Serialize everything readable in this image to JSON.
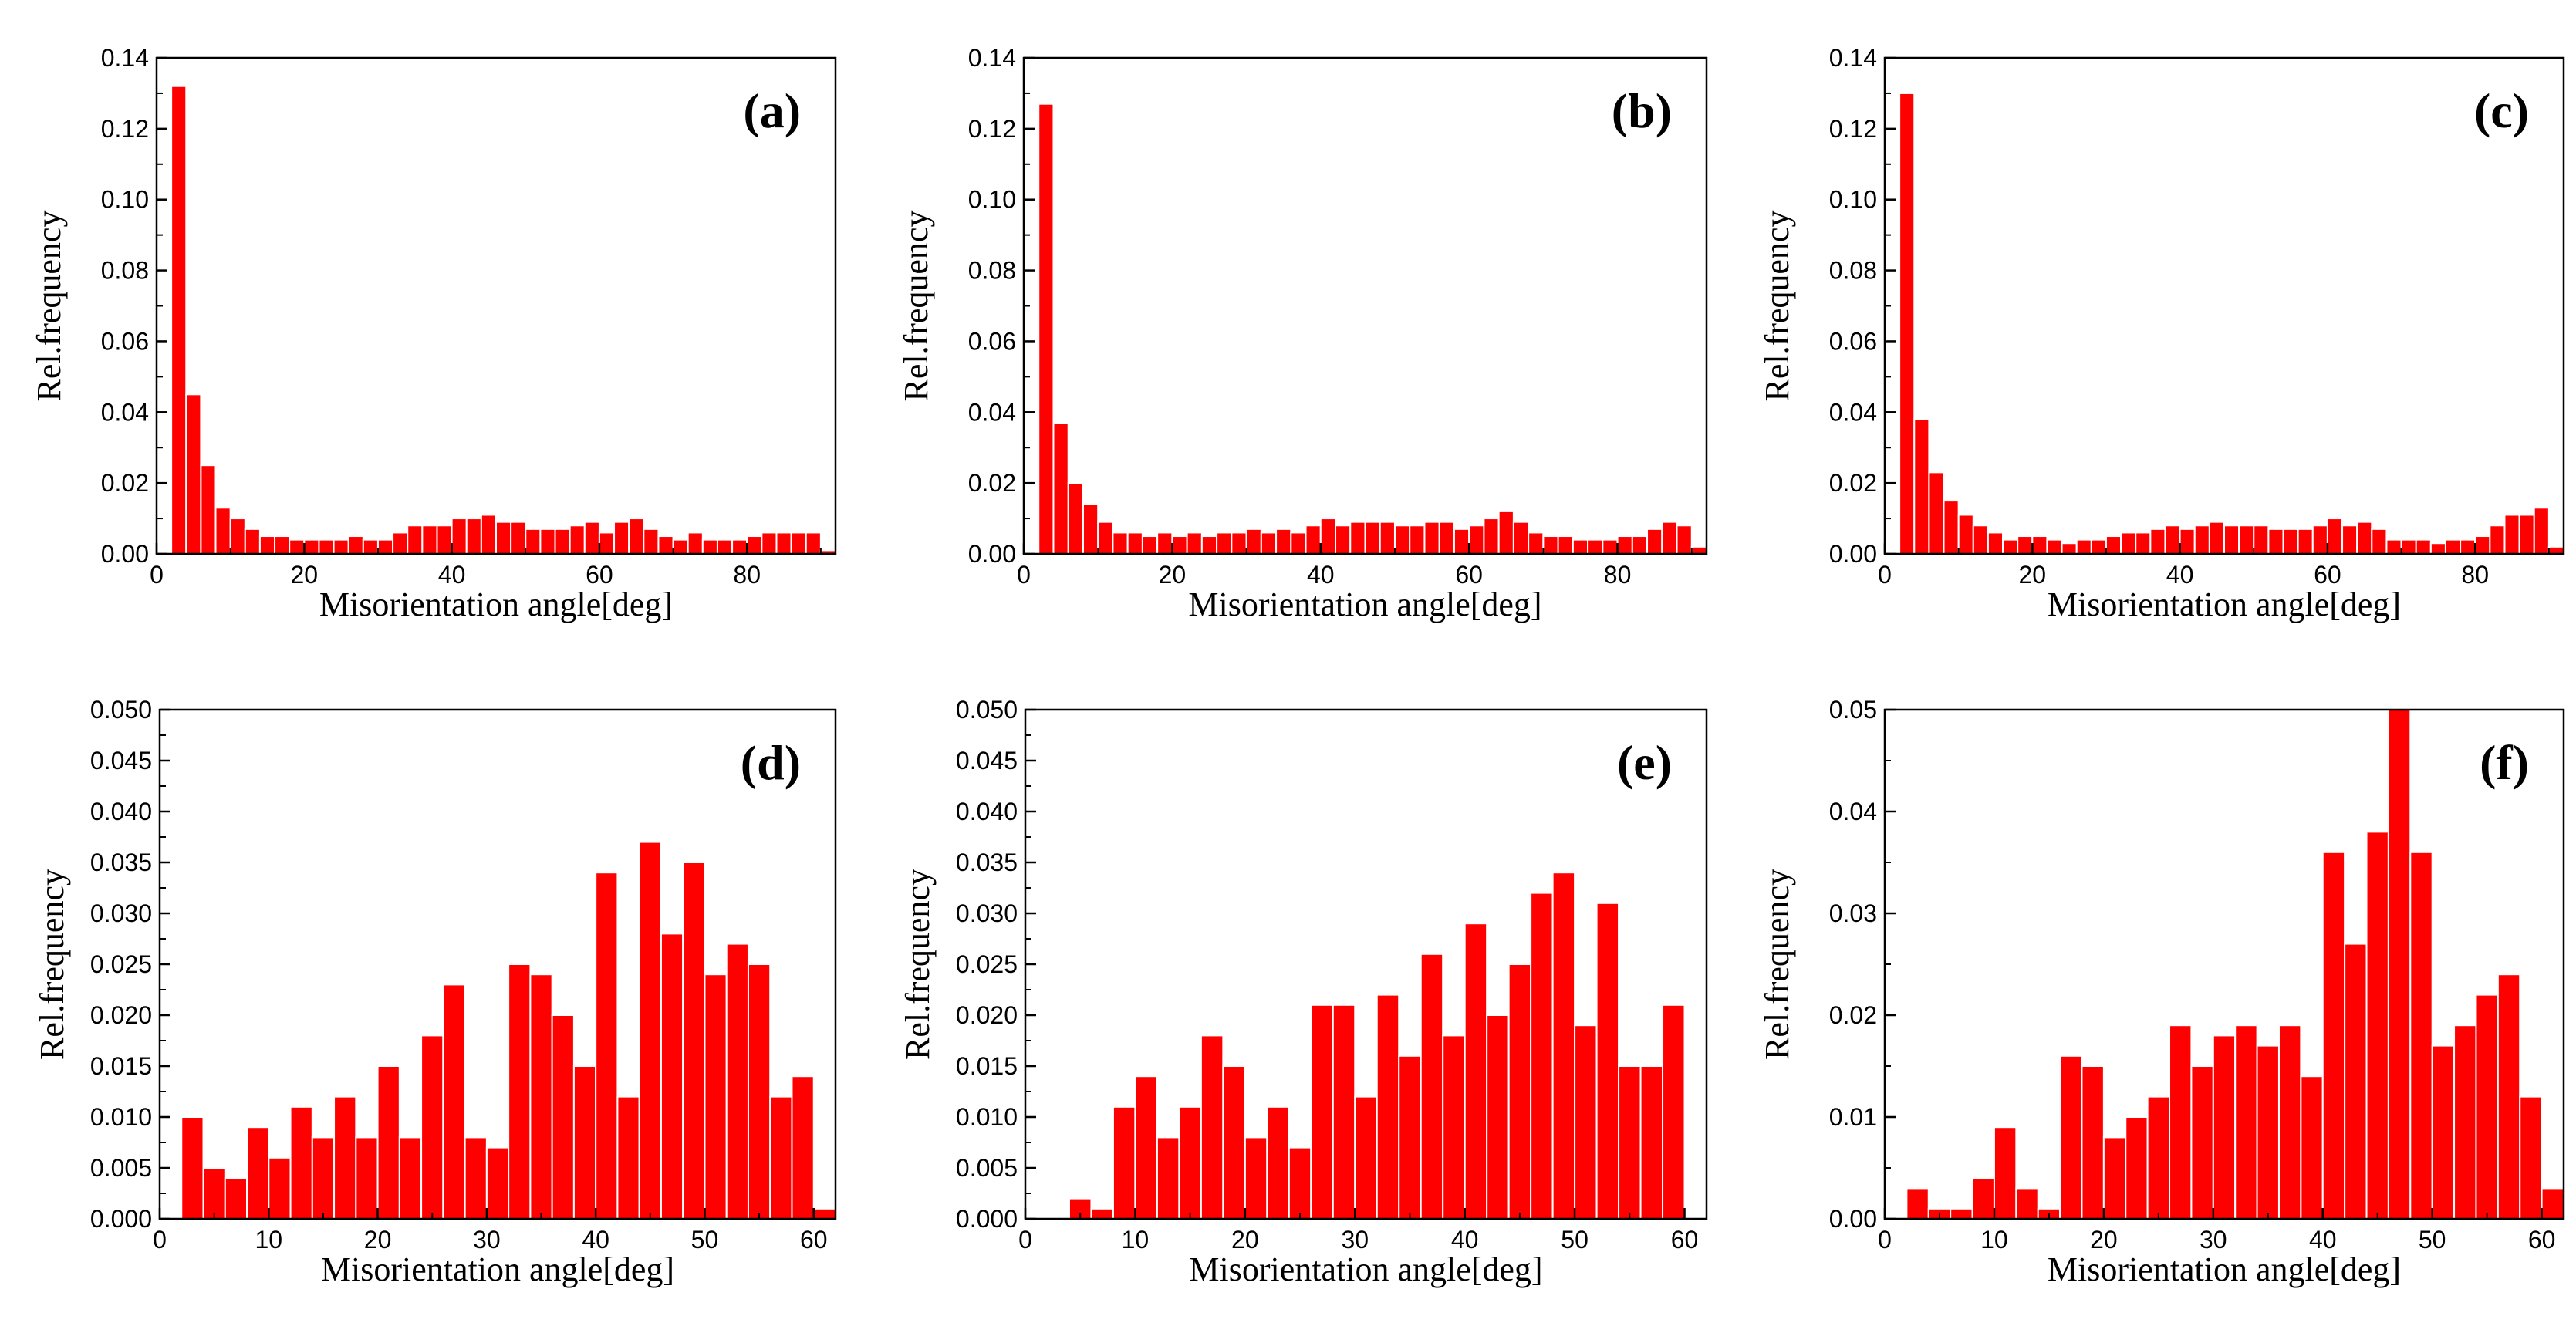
{
  "chart_data": [
    {
      "type": "bar",
      "panel_label": "(a)",
      "xlabel": "Misorientation angle[deg]",
      "ylabel": "Rel.frequency",
      "xlim": [
        0,
        92
      ],
      "ylim": [
        0,
        0.14
      ],
      "bin_width": 2,
      "xticks": [
        0,
        20,
        40,
        60,
        80
      ],
      "yticks": [
        0.0,
        0.02,
        0.04,
        0.06,
        0.08,
        0.1,
        0.12,
        0.14
      ],
      "ytick_labels": [
        "0.00",
        "0.02",
        "0.04",
        "0.06",
        "0.08",
        "0.10",
        "0.12",
        "0.14"
      ],
      "x": [
        3,
        5,
        7,
        9,
        11,
        13,
        15,
        17,
        19,
        21,
        23,
        25,
        27,
        29,
        31,
        33,
        35,
        37,
        39,
        41,
        43,
        45,
        47,
        49,
        51,
        53,
        55,
        57,
        59,
        61,
        63,
        65,
        67,
        69,
        71,
        73,
        75,
        77,
        79,
        81,
        83,
        85,
        87,
        89,
        91
      ],
      "values": [
        0.132,
        0.045,
        0.025,
        0.013,
        0.01,
        0.007,
        0.005,
        0.005,
        0.004,
        0.004,
        0.004,
        0.004,
        0.005,
        0.004,
        0.004,
        0.006,
        0.008,
        0.008,
        0.008,
        0.01,
        0.01,
        0.011,
        0.009,
        0.009,
        0.007,
        0.007,
        0.007,
        0.008,
        0.009,
        0.006,
        0.009,
        0.01,
        0.007,
        0.005,
        0.004,
        0.006,
        0.004,
        0.004,
        0.004,
        0.005,
        0.006,
        0.006,
        0.006,
        0.006,
        0.001
      ]
    },
    {
      "type": "bar",
      "panel_label": "(b)",
      "xlabel": "Misorientation angle[deg]",
      "ylabel": "Rel.frequency",
      "xlim": [
        0,
        92
      ],
      "ylim": [
        0,
        0.14
      ],
      "bin_width": 2,
      "xticks": [
        0,
        20,
        40,
        60,
        80
      ],
      "yticks": [
        0.0,
        0.02,
        0.04,
        0.06,
        0.08,
        0.1,
        0.12,
        0.14
      ],
      "ytick_labels": [
        "0.00",
        "0.02",
        "0.04",
        "0.06",
        "0.08",
        "0.10",
        "0.12",
        "0.14"
      ],
      "x": [
        3,
        5,
        7,
        9,
        11,
        13,
        15,
        17,
        19,
        21,
        23,
        25,
        27,
        29,
        31,
        33,
        35,
        37,
        39,
        41,
        43,
        45,
        47,
        49,
        51,
        53,
        55,
        57,
        59,
        61,
        63,
        65,
        67,
        69,
        71,
        73,
        75,
        77,
        79,
        81,
        83,
        85,
        87,
        89,
        91
      ],
      "values": [
        0.127,
        0.037,
        0.02,
        0.014,
        0.009,
        0.006,
        0.006,
        0.005,
        0.006,
        0.005,
        0.006,
        0.005,
        0.006,
        0.006,
        0.007,
        0.006,
        0.007,
        0.006,
        0.008,
        0.01,
        0.008,
        0.009,
        0.009,
        0.009,
        0.008,
        0.008,
        0.009,
        0.009,
        0.007,
        0.008,
        0.01,
        0.012,
        0.009,
        0.006,
        0.005,
        0.005,
        0.004,
        0.004,
        0.004,
        0.005,
        0.005,
        0.007,
        0.009,
        0.008,
        0.002
      ]
    },
    {
      "type": "bar",
      "panel_label": "(c)",
      "xlabel": "Misorientation angle[deg]",
      "ylabel": "Rel.frequency",
      "xlim": [
        0,
        92
      ],
      "ylim": [
        0,
        0.14
      ],
      "bin_width": 2,
      "xticks": [
        0,
        20,
        40,
        60,
        80
      ],
      "yticks": [
        0.0,
        0.02,
        0.04,
        0.06,
        0.08,
        0.1,
        0.12,
        0.14
      ],
      "ytick_labels": [
        "0.00",
        "0.02",
        "0.04",
        "0.06",
        "0.08",
        "0.10",
        "0.12",
        "0.14"
      ],
      "x": [
        3,
        5,
        7,
        9,
        11,
        13,
        15,
        17,
        19,
        21,
        23,
        25,
        27,
        29,
        31,
        33,
        35,
        37,
        39,
        41,
        43,
        45,
        47,
        49,
        51,
        53,
        55,
        57,
        59,
        61,
        63,
        65,
        67,
        69,
        71,
        73,
        75,
        77,
        79,
        81,
        83,
        85,
        87,
        89,
        91
      ],
      "values": [
        0.13,
        0.038,
        0.023,
        0.015,
        0.011,
        0.008,
        0.006,
        0.004,
        0.005,
        0.005,
        0.004,
        0.003,
        0.004,
        0.004,
        0.005,
        0.006,
        0.006,
        0.007,
        0.008,
        0.007,
        0.008,
        0.009,
        0.008,
        0.008,
        0.008,
        0.007,
        0.007,
        0.007,
        0.008,
        0.01,
        0.008,
        0.009,
        0.007,
        0.004,
        0.004,
        0.004,
        0.003,
        0.004,
        0.004,
        0.005,
        0.008,
        0.011,
        0.011,
        0.013,
        0.002
      ]
    },
    {
      "type": "bar",
      "panel_label": "(d)",
      "xlabel": "Misorientation angle[deg]",
      "ylabel": "Rel.frequency",
      "xlim": [
        0,
        62
      ],
      "ylim": [
        0,
        0.05
      ],
      "bin_width": 2,
      "xticks": [
        0,
        10,
        20,
        30,
        40,
        50,
        60
      ],
      "yticks": [
        0.0,
        0.005,
        0.01,
        0.015,
        0.02,
        0.025,
        0.03,
        0.035,
        0.04,
        0.045,
        0.05
      ],
      "ytick_labels": [
        "0.000",
        "0.005",
        "0.010",
        "0.015",
        "0.020",
        "0.025",
        "0.030",
        "0.035",
        "0.040",
        "0.045",
        "0.050"
      ],
      "x": [
        3,
        5,
        7,
        9,
        11,
        13,
        15,
        17,
        19,
        21,
        23,
        25,
        27,
        29,
        31,
        33,
        35,
        37,
        39,
        41,
        43,
        45,
        47,
        49,
        51,
        53,
        55,
        57,
        59,
        61
      ],
      "values": [
        0.01,
        0.005,
        0.004,
        0.009,
        0.006,
        0.011,
        0.008,
        0.012,
        0.008,
        0.015,
        0.008,
        0.018,
        0.023,
        0.008,
        0.007,
        0.025,
        0.024,
        0.02,
        0.015,
        0.034,
        0.012,
        0.037,
        0.028,
        0.035,
        0.024,
        0.027,
        0.025,
        0.012,
        0.014,
        0.001
      ]
    },
    {
      "type": "bar",
      "panel_label": "(e)",
      "xlabel": "Misorientation angle[deg]",
      "ylabel": "Rel.frequency",
      "xlim": [
        0,
        62
      ],
      "ylim": [
        0,
        0.05
      ],
      "bin_width": 2,
      "xticks": [
        0,
        10,
        20,
        30,
        40,
        50,
        60
      ],
      "yticks": [
        0.0,
        0.005,
        0.01,
        0.015,
        0.02,
        0.025,
        0.03,
        0.035,
        0.04,
        0.045,
        0.05
      ],
      "ytick_labels": [
        "0.000",
        "0.005",
        "0.010",
        "0.015",
        "0.020",
        "0.025",
        "0.030",
        "0.035",
        "0.040",
        "0.045",
        "0.050"
      ],
      "x": [
        5,
        7,
        9,
        11,
        13,
        15,
        17,
        19,
        21,
        23,
        25,
        27,
        29,
        31,
        33,
        35,
        37,
        39,
        41,
        43,
        45,
        47,
        49,
        51,
        53,
        55,
        57,
        59
      ],
      "values": [
        0.002,
        0.001,
        0.011,
        0.014,
        0.008,
        0.011,
        0.018,
        0.015,
        0.008,
        0.011,
        0.007,
        0.021,
        0.021,
        0.012,
        0.022,
        0.016,
        0.026,
        0.018,
        0.029,
        0.02,
        0.025,
        0.032,
        0.034,
        0.019,
        0.031,
        0.015,
        0.015,
        0.021
      ]
    },
    {
      "type": "bar",
      "panel_label": "(f)",
      "xlabel": "Misorientation angle[deg]",
      "ylabel": "Rel.frequency",
      "xlim": [
        0,
        62
      ],
      "ylim": [
        0,
        0.05
      ],
      "bin_width": 2,
      "xticks": [
        0,
        10,
        20,
        30,
        40,
        50,
        60
      ],
      "yticks": [
        0.0,
        0.01,
        0.02,
        0.03,
        0.04,
        0.05
      ],
      "ytick_labels": [
        "0.00",
        "0.01",
        "0.02",
        "0.03",
        "0.04",
        "0.05"
      ],
      "x": [
        3,
        5,
        7,
        9,
        11,
        13,
        15,
        17,
        19,
        21,
        23,
        25,
        27,
        29,
        31,
        33,
        35,
        37,
        39,
        41,
        43,
        45,
        47,
        49,
        51,
        53,
        55,
        57,
        59,
        61
      ],
      "values": [
        0.003,
        0.001,
        0.001,
        0.004,
        0.009,
        0.003,
        0.001,
        0.016,
        0.015,
        0.008,
        0.01,
        0.012,
        0.019,
        0.015,
        0.018,
        0.019,
        0.017,
        0.019,
        0.014,
        0.036,
        0.027,
        0.038,
        0.05,
        0.036,
        0.017,
        0.019,
        0.022,
        0.024,
        0.012,
        0.003
      ]
    }
  ],
  "colors": {
    "bar_fill": "#ff0000",
    "bar_stroke": "#ffffff",
    "axis": "#000000"
  }
}
